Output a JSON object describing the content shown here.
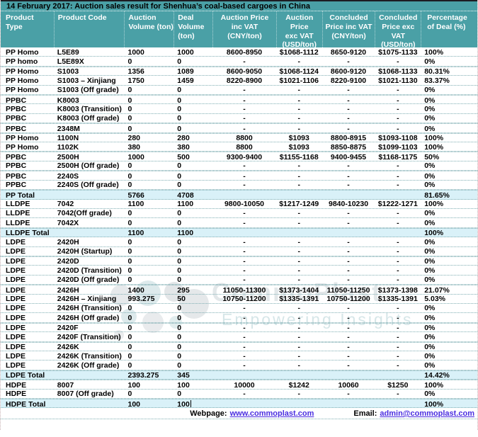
{
  "title": "14 February 2017: Auction sales result for Shenhua’s coal-based cargoes in China",
  "colors": {
    "header_teal": "#4AA0A6",
    "total_row_bg": "#D9F1F8",
    "link_blue": "#4A2DE0",
    "row_border": "#7FAEB3"
  },
  "columns": [
    "Product\nType",
    "Product Code",
    "Auction\nVolume (ton)",
    "Deal\nVolume\n(ton)",
    "Auction Price\ninc VAT\n(CNY/ton)",
    "Auction\nPrice\nexc VAT\n(USD/ton)",
    "Concluded\nPrice inc VAT\n(CNY/ton)",
    "Concluded\nPrice exc VAT\n(USD/ton)",
    "Percentage\nof Deal (%)"
  ],
  "rows": [
    {
      "cells": [
        "PP Homo",
        "L5E89",
        "1000",
        "1000",
        "8600-8950",
        "$1068-1112",
        "8650-9120",
        "$1075-1133",
        "100%"
      ],
      "total": false,
      "sep": false
    },
    {
      "cells": [
        "PP homo",
        "L5E89X",
        "0",
        "0",
        "-",
        "-",
        "-",
        "-",
        "0%"
      ],
      "total": false,
      "sep": false
    },
    {
      "cells": [
        "PP Homo",
        "S1003",
        "1356",
        "1089",
        "8600-9050",
        "$1068-1124",
        "8600-9120",
        "$1068-1133",
        "80.31%"
      ],
      "total": false,
      "sep": true
    },
    {
      "cells": [
        "PP Homo",
        "S1003 – Xinjiang",
        "1750",
        "1459",
        "8220-8900",
        "$1021-1106",
        "8220-9100",
        "$1021-1130",
        "83.37%"
      ],
      "total": false,
      "sep": false
    },
    {
      "cells": [
        "PP Homo",
        "S1003 (Off grade)",
        "0",
        "0",
        "-",
        "-",
        "-",
        "-",
        "0%"
      ],
      "total": false,
      "sep": false
    },
    {
      "cells": [
        "PPBC",
        "K8003",
        "0",
        "0",
        "-",
        "-",
        "-",
        "-",
        "0%"
      ],
      "total": false,
      "sep": true
    },
    {
      "cells": [
        "PPBC",
        "K8003 (Transition)",
        "0",
        "0",
        "-",
        "-",
        "-",
        "-",
        "0%"
      ],
      "total": false,
      "sep": false
    },
    {
      "cells": [
        "PPBC",
        "K8003 (Off grade)",
        "0",
        "0",
        "-",
        "-",
        "-",
        "-",
        "0%"
      ],
      "total": false,
      "sep": false
    },
    {
      "cells": [
        "PPBC",
        "2348M",
        "0",
        "0",
        "-",
        "-",
        "-",
        "-",
        "0%"
      ],
      "total": false,
      "sep": true
    },
    {
      "cells": [
        "PP Homo",
        "1100N",
        "280",
        "280",
        "8800",
        "$1093",
        "8800-8915",
        "$1093-1108",
        "100%"
      ],
      "total": false,
      "sep": true
    },
    {
      "cells": [
        "PP Homo",
        "1102K",
        "380",
        "380",
        "8800",
        "$1093",
        "8850-8875",
        "$1099-1103",
        "100%"
      ],
      "total": false,
      "sep": false
    },
    {
      "cells": [
        "PPBC",
        "2500H",
        "1000",
        "500",
        "9300-9400",
        "$1155-1168",
        "9400-9455",
        "$1168-1175",
        "50%"
      ],
      "total": false,
      "sep": true
    },
    {
      "cells": [
        "PPBC",
        "2500H (Off grade)",
        "0",
        "0",
        "-",
        "-",
        "-",
        "-",
        "0%"
      ],
      "total": false,
      "sep": false
    },
    {
      "cells": [
        "PPBC",
        "2240S",
        "0",
        "0",
        "-",
        "-",
        "-",
        "-",
        "0%"
      ],
      "total": false,
      "sep": true
    },
    {
      "cells": [
        "PPBC",
        "2240S (Off grade)",
        "0",
        "0",
        "-",
        "-",
        "-",
        "-",
        "0%"
      ],
      "total": false,
      "sep": false
    },
    {
      "cells": [
        "PP Total",
        "",
        "5766",
        "4708",
        "",
        "",
        "",
        "",
        "81.65%"
      ],
      "total": true,
      "sep": false
    },
    {
      "cells": [
        "LLDPE",
        "7042",
        "1100",
        "1100",
        "9800-10050",
        "$1217-1249",
        "9840-10230",
        "$1222-1271",
        "100%"
      ],
      "total": false,
      "sep": false
    },
    {
      "cells": [
        "LLDPE",
        "7042(Off grade)",
        "0",
        "0",
        "-",
        "-",
        "-",
        "-",
        "0%"
      ],
      "total": false,
      "sep": false
    },
    {
      "cells": [
        "LLDPE",
        "7042X",
        "0",
        "0",
        "-",
        "-",
        "-",
        "-",
        "0%"
      ],
      "total": false,
      "sep": false
    },
    {
      "cells": [
        "LLDPE Total",
        "",
        "1100",
        "1100",
        "",
        "",
        "",
        "",
        "100%"
      ],
      "total": true,
      "sep": false
    },
    {
      "cells": [
        "LDPE",
        "2420H",
        "0",
        "0",
        "-",
        "-",
        "-",
        "-",
        "0%"
      ],
      "total": false,
      "sep": false
    },
    {
      "cells": [
        "LDPE",
        "2420H (Startup)",
        "0",
        "0",
        "-",
        "-",
        "-",
        "-",
        "0%"
      ],
      "total": false,
      "sep": false
    },
    {
      "cells": [
        "LDPE",
        "2420D",
        "0",
        "0",
        "-",
        "-",
        "-",
        "-",
        "0%"
      ],
      "total": false,
      "sep": true
    },
    {
      "cells": [
        "LDPE",
        "2420D (Transition)",
        "0",
        "0",
        "-",
        "-",
        "-",
        "-",
        "0%"
      ],
      "total": false,
      "sep": false
    },
    {
      "cells": [
        "LDPE",
        "2420D (Off grade)",
        "0",
        "0",
        "-",
        "-",
        "-",
        "-",
        "0%"
      ],
      "total": false,
      "sep": false
    },
    {
      "cells": [
        "LDPE",
        "2426H",
        "1400",
        "295",
        "11050-11300",
        "$1373-1404",
        "11050-11250",
        "$1373-1398",
        "21.07%"
      ],
      "total": false,
      "sep": true
    },
    {
      "cells": [
        "LDPE",
        "2426H – Xinjiang",
        "993.275",
        "50",
        "10750-11200",
        "$1335-1391",
        "10750-11200",
        "$1335-1391",
        "5.03%"
      ],
      "total": false,
      "sep": false
    },
    {
      "cells": [
        "LDPE",
        "2426H (Transition)",
        "0",
        "0",
        "-",
        "-",
        "-",
        "-",
        "0%"
      ],
      "total": false,
      "sep": false
    },
    {
      "cells": [
        "LDPE",
        "2426H (Off grade)",
        "0",
        "0",
        "-",
        "-",
        "-",
        "-",
        "0%"
      ],
      "total": false,
      "sep": false
    },
    {
      "cells": [
        "LDPE",
        "2420F",
        "0",
        "0",
        "-",
        "-",
        "-",
        "-",
        "0%"
      ],
      "total": false,
      "sep": true
    },
    {
      "cells": [
        "LDPE",
        "2420F (Transition)",
        "0",
        "0",
        "-",
        "-",
        "-",
        "-",
        "0%"
      ],
      "total": false,
      "sep": false
    },
    {
      "cells": [
        "LDPE",
        "2426K",
        "0",
        "0",
        "-",
        "-",
        "-",
        "-",
        "0%"
      ],
      "total": false,
      "sep": true
    },
    {
      "cells": [
        "LDPE",
        "2426K (Transition)",
        "0",
        "0",
        "-",
        "-",
        "-",
        "-",
        "0%"
      ],
      "total": false,
      "sep": false
    },
    {
      "cells": [
        "LDPE",
        "2426K (Off grade)",
        "0",
        "0",
        "-",
        "-",
        "-",
        "-",
        "0%"
      ],
      "total": false,
      "sep": false
    },
    {
      "cells": [
        "LDPE Total",
        "",
        "2393.275",
        "345",
        "",
        "",
        "",
        "",
        "14.42%"
      ],
      "total": true,
      "sep": false
    },
    {
      "cells": [
        "HDPE",
        "8007",
        "100",
        "100",
        "10000",
        "$1242",
        "10060",
        "$1250",
        "100%"
      ],
      "total": false,
      "sep": true
    },
    {
      "cells": [
        "HDPE",
        "8007 (Off grade)",
        "0",
        "0",
        "-",
        "-",
        "-",
        "-",
        "0%"
      ],
      "total": false,
      "sep": false
    },
    {
      "cells": [
        "HDPE Total",
        "",
        "100",
        "100",
        "",
        "",
        "",
        "",
        "100%"
      ],
      "total": true,
      "sep": false,
      "caret_col": 3
    }
  ],
  "footer": {
    "webpage_label": "Webpage:",
    "webpage_link": "www.commoplast.com",
    "email_label": "Email:",
    "email_link": "admin@commoplast.com"
  },
  "watermark": {
    "line1": "CommoPlast",
    "line2": "Empowering Insights"
  }
}
